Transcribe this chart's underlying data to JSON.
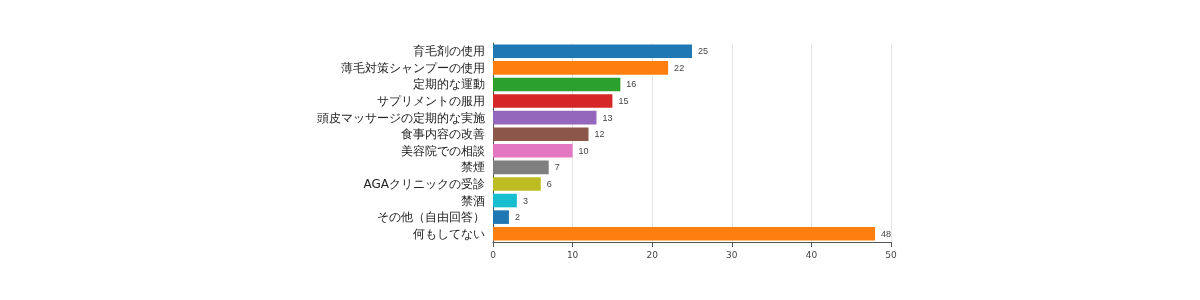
{
  "chart_data": {
    "type": "bar",
    "orientation": "horizontal",
    "categories": [
      "育毛剤の使用",
      "薄毛対策シャンプーの使用",
      "定期的な運動",
      "サプリメントの服用",
      "頭皮マッサージの定期的な実施",
      "食事内容の改善",
      "美容院での相談",
      "禁煙",
      "AGAクリニックの受診",
      "禁酒",
      "その他（自由回答）",
      "何もしてない"
    ],
    "values": [
      25,
      22,
      16,
      15,
      13,
      12,
      10,
      7,
      6,
      3,
      2,
      48
    ],
    "colors": [
      "#1f77b4",
      "#ff7f0e",
      "#2ca02c",
      "#d62728",
      "#9467bd",
      "#8c564b",
      "#e377c2",
      "#7f7f7f",
      "#bcbd22",
      "#17becf",
      "#1f77b4",
      "#ff7f0e"
    ],
    "xlim": [
      0,
      50
    ],
    "xticks": [
      0,
      10,
      20,
      30,
      40,
      50
    ],
    "grid": "x",
    "data_labels": true
  }
}
